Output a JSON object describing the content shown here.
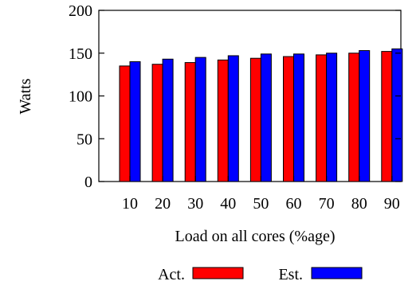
{
  "chart_data": {
    "type": "bar",
    "title": "",
    "xlabel": "Load on all cores (%age)",
    "ylabel": "Watts",
    "categories": [
      "10",
      "20",
      "30",
      "40",
      "50",
      "60",
      "70",
      "80",
      "90"
    ],
    "series": [
      {
        "name": "Act.",
        "color": "#ff0000",
        "values": [
          135,
          137,
          139,
          142,
          144,
          146,
          148,
          150,
          152
        ]
      },
      {
        "name": "Est.",
        "color": "#0000ff",
        "values": [
          140,
          143,
          145,
          147,
          149,
          149,
          150,
          153,
          155
        ]
      }
    ],
    "ylim": [
      0,
      200
    ],
    "yticks": [
      "0",
      "50",
      "100",
      "150",
      "200"
    ],
    "grid": false,
    "legend_position": "bottom-center"
  }
}
